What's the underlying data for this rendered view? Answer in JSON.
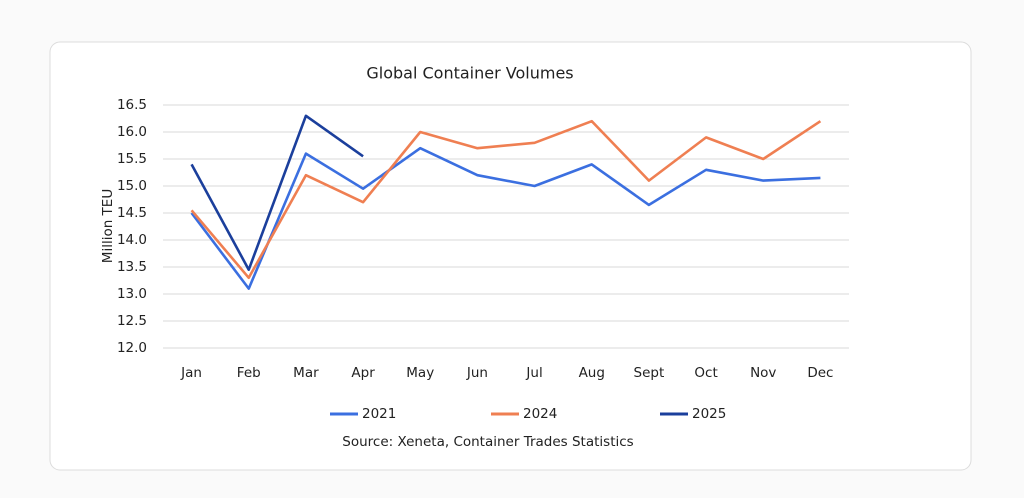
{
  "chart_data": {
    "type": "line",
    "title": "Global Container Volumes",
    "ylabel": "Million TEU",
    "source": "Source: Xeneta, Container Trades Statistics",
    "categories": [
      "Jan",
      "Feb",
      "Mar",
      "Apr",
      "May",
      "Jun",
      "Jul",
      "Aug",
      "Sept",
      "Oct",
      "Nov",
      "Dec"
    ],
    "series": [
      {
        "name": "2021",
        "color": "#3b6fe0",
        "values": [
          14.5,
          13.1,
          15.6,
          14.95,
          15.7,
          15.2,
          15.0,
          15.4,
          14.65,
          15.3,
          15.1,
          15.15
        ]
      },
      {
        "name": "2024",
        "color": "#ef7f52",
        "values": [
          14.55,
          13.3,
          15.2,
          14.7,
          16.0,
          15.7,
          15.8,
          16.2,
          15.1,
          15.9,
          15.5,
          16.2
        ]
      },
      {
        "name": "2025",
        "color": "#1b3f9c",
        "values": [
          15.4,
          13.45,
          16.3,
          15.55,
          null,
          null,
          null,
          null,
          null,
          null,
          null,
          null
        ]
      }
    ],
    "ylim": [
      12,
      16.5
    ],
    "yticks": [
      {
        "value": 12,
        "label": "12.0"
      },
      12.5,
      {
        "value": 13,
        "label": "13.0"
      },
      13.5,
      {
        "value": 14,
        "label": "14.0"
      },
      14.5,
      {
        "value": 15,
        "label": "15.0"
      },
      15.5,
      {
        "value": 16,
        "label": "16.0"
      },
      16.5
    ],
    "grid": true,
    "legend": "bottom"
  }
}
